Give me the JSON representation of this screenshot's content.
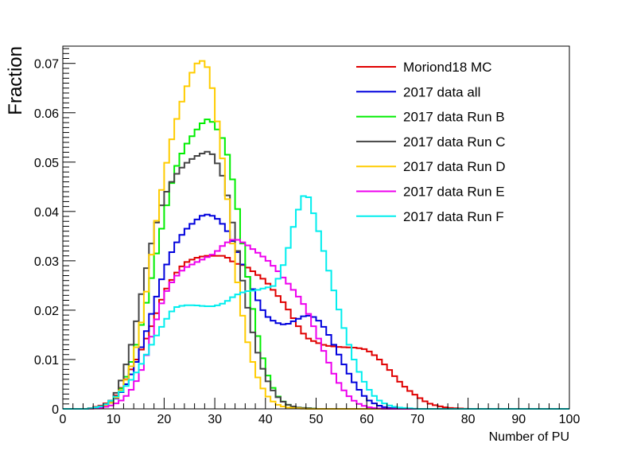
{
  "chart_data": {
    "type": "line",
    "style": "step-histogram",
    "xlabel": "Number of PU",
    "ylabel": "Fraction",
    "xlim": [
      0,
      100
    ],
    "ylim": [
      0,
      0.0735
    ],
    "x_ticks": [
      0,
      10,
      20,
      30,
      40,
      50,
      60,
      70,
      80,
      90,
      100
    ],
    "x_tick_labels": [
      "0",
      "10",
      "20",
      "30",
      "40",
      "50",
      "60",
      "70",
      "80",
      "90",
      "100"
    ],
    "y_ticks": [
      0,
      0.01,
      0.02,
      0.03,
      0.04,
      0.05,
      0.06,
      0.07
    ],
    "y_tick_labels": [
      "0",
      "0.01",
      "0.02",
      "0.03",
      "0.04",
      "0.05",
      "0.06",
      "0.07"
    ],
    "grid": false,
    "legend_position": "top-right",
    "bin_width": 1,
    "series": [
      {
        "name": "Moriond18 MC",
        "color": "#e00000",
        "points": [
          [
            5,
            0
          ],
          [
            8,
            0.0008
          ],
          [
            10,
            0.002
          ],
          [
            12,
            0.005
          ],
          [
            14,
            0.009
          ],
          [
            16,
            0.013
          ],
          [
            18,
            0.018
          ],
          [
            20,
            0.0235
          ],
          [
            22,
            0.027
          ],
          [
            24,
            0.0295
          ],
          [
            26,
            0.0305
          ],
          [
            28,
            0.031
          ],
          [
            30,
            0.031
          ],
          [
            32,
            0.031
          ],
          [
            34,
            0.0295
          ],
          [
            36,
            0.029
          ],
          [
            38,
            0.0275
          ],
          [
            40,
            0.026
          ],
          [
            42,
            0.0235
          ],
          [
            44,
            0.021
          ],
          [
            46,
            0.0175
          ],
          [
            48,
            0.0145
          ],
          [
            50,
            0.0135
          ],
          [
            52,
            0.0128
          ],
          [
            55,
            0.0125
          ],
          [
            58,
            0.0124
          ],
          [
            60,
            0.012
          ],
          [
            62,
            0.0105
          ],
          [
            64,
            0.0085
          ],
          [
            66,
            0.006
          ],
          [
            68,
            0.004
          ],
          [
            70,
            0.0025
          ],
          [
            72,
            0.0012
          ],
          [
            74,
            0.0006
          ],
          [
            76,
            0.0002
          ],
          [
            80,
            0
          ]
        ]
      },
      {
        "name": "2017 data all",
        "color": "#0000dd",
        "points": [
          [
            5,
            0
          ],
          [
            8,
            0.0005
          ],
          [
            10,
            0.0015
          ],
          [
            12,
            0.004
          ],
          [
            14,
            0.008
          ],
          [
            16,
            0.014
          ],
          [
            18,
            0.021
          ],
          [
            20,
            0.028
          ],
          [
            22,
            0.033
          ],
          [
            24,
            0.036
          ],
          [
            26,
            0.038
          ],
          [
            28,
            0.0395
          ],
          [
            30,
            0.039
          ],
          [
            32,
            0.037
          ],
          [
            34,
            0.033
          ],
          [
            36,
            0.028
          ],
          [
            38,
            0.023
          ],
          [
            40,
            0.019
          ],
          [
            42,
            0.0175
          ],
          [
            44,
            0.017
          ],
          [
            46,
            0.018
          ],
          [
            48,
            0.019
          ],
          [
            50,
            0.0185
          ],
          [
            52,
            0.016
          ],
          [
            54,
            0.012
          ],
          [
            56,
            0.008
          ],
          [
            58,
            0.0045
          ],
          [
            60,
            0.002
          ],
          [
            62,
            0.0008
          ],
          [
            64,
            0.0002
          ],
          [
            68,
            0
          ]
        ]
      },
      {
        "name": "2017 data Run B",
        "color": "#00ee00",
        "points": [
          [
            5,
            0
          ],
          [
            8,
            0.0005
          ],
          [
            10,
            0.0015
          ],
          [
            12,
            0.005
          ],
          [
            14,
            0.011
          ],
          [
            16,
            0.019
          ],
          [
            18,
            0.029
          ],
          [
            20,
            0.039
          ],
          [
            22,
            0.048
          ],
          [
            24,
            0.053
          ],
          [
            26,
            0.056
          ],
          [
            28,
            0.0585
          ],
          [
            29,
            0.0588
          ],
          [
            30,
            0.0575
          ],
          [
            32,
            0.054
          ],
          [
            34,
            0.044
          ],
          [
            36,
            0.03
          ],
          [
            38,
            0.017
          ],
          [
            40,
            0.008
          ],
          [
            42,
            0.003
          ],
          [
            44,
            0.001
          ],
          [
            46,
            0.0003
          ],
          [
            50,
            0
          ]
        ]
      },
      {
        "name": "2017 data Run C",
        "color": "#444444",
        "points": [
          [
            5,
            0
          ],
          [
            8,
            0.0006
          ],
          [
            10,
            0.002
          ],
          [
            12,
            0.007
          ],
          [
            14,
            0.015
          ],
          [
            16,
            0.026
          ],
          [
            18,
            0.036
          ],
          [
            20,
            0.043
          ],
          [
            22,
            0.047
          ],
          [
            24,
            0.0495
          ],
          [
            26,
            0.051
          ],
          [
            28,
            0.052
          ],
          [
            29,
            0.0522
          ],
          [
            30,
            0.051
          ],
          [
            32,
            0.046
          ],
          [
            34,
            0.035
          ],
          [
            36,
            0.023
          ],
          [
            38,
            0.013
          ],
          [
            40,
            0.0065
          ],
          [
            42,
            0.0028
          ],
          [
            44,
            0.001
          ],
          [
            46,
            0.0003
          ],
          [
            50,
            0
          ]
        ]
      },
      {
        "name": "2017 data Run D",
        "color": "#ffcc00",
        "points": [
          [
            5,
            0
          ],
          [
            8,
            0.0004
          ],
          [
            10,
            0.0015
          ],
          [
            12,
            0.0045
          ],
          [
            14,
            0.01
          ],
          [
            16,
            0.02
          ],
          [
            18,
            0.035
          ],
          [
            20,
            0.0475
          ],
          [
            22,
            0.057
          ],
          [
            24,
            0.064
          ],
          [
            26,
            0.0695
          ],
          [
            27,
            0.0705
          ],
          [
            28,
            0.0705
          ],
          [
            29,
            0.068
          ],
          [
            30,
            0.062
          ],
          [
            32,
            0.047
          ],
          [
            34,
            0.029
          ],
          [
            36,
            0.0155
          ],
          [
            38,
            0.0075
          ],
          [
            40,
            0.003
          ],
          [
            42,
            0.001
          ],
          [
            44,
            0.0003
          ],
          [
            48,
            0
          ]
        ]
      },
      {
        "name": "2017 data Run E",
        "color": "#ee00ee",
        "points": [
          [
            5,
            0
          ],
          [
            8,
            0.0003
          ],
          [
            10,
            0.0008
          ],
          [
            12,
            0.002
          ],
          [
            14,
            0.0045
          ],
          [
            16,
            0.009
          ],
          [
            18,
            0.0165
          ],
          [
            20,
            0.023
          ],
          [
            22,
            0.0265
          ],
          [
            24,
            0.0285
          ],
          [
            26,
            0.0295
          ],
          [
            28,
            0.0305
          ],
          [
            30,
            0.0315
          ],
          [
            32,
            0.0335
          ],
          [
            34,
            0.0345
          ],
          [
            36,
            0.0335
          ],
          [
            38,
            0.032
          ],
          [
            40,
            0.0305
          ],
          [
            42,
            0.0285
          ],
          [
            44,
            0.026
          ],
          [
            46,
            0.0235
          ],
          [
            48,
            0.0205
          ],
          [
            50,
            0.0155
          ],
          [
            52,
            0.0105
          ],
          [
            54,
            0.006
          ],
          [
            56,
            0.003
          ],
          [
            58,
            0.0012
          ],
          [
            60,
            0.0004
          ],
          [
            62,
            0.0001
          ],
          [
            64,
            0
          ]
        ]
      },
      {
        "name": "2017 data Run F",
        "color": "#00eeee",
        "points": [
          [
            5,
            0
          ],
          [
            8,
            0.0006
          ],
          [
            10,
            0.002
          ],
          [
            12,
            0.004
          ],
          [
            14,
            0.0065
          ],
          [
            16,
            0.01
          ],
          [
            18,
            0.014
          ],
          [
            20,
            0.0175
          ],
          [
            22,
            0.0205
          ],
          [
            24,
            0.021
          ],
          [
            26,
            0.021
          ],
          [
            28,
            0.0208
          ],
          [
            30,
            0.0208
          ],
          [
            32,
            0.0215
          ],
          [
            34,
            0.023
          ],
          [
            36,
            0.0238
          ],
          [
            38,
            0.024
          ],
          [
            40,
            0.0245
          ],
          [
            42,
            0.025
          ],
          [
            44,
            0.0305
          ],
          [
            46,
            0.039
          ],
          [
            48,
            0.0445
          ],
          [
            50,
            0.038
          ],
          [
            52,
            0.03
          ],
          [
            54,
            0.022
          ],
          [
            56,
            0.0145
          ],
          [
            58,
            0.0085
          ],
          [
            60,
            0.0045
          ],
          [
            62,
            0.002
          ],
          [
            64,
            0.0008
          ],
          [
            66,
            0.0003
          ],
          [
            70,
            0
          ]
        ]
      }
    ]
  }
}
